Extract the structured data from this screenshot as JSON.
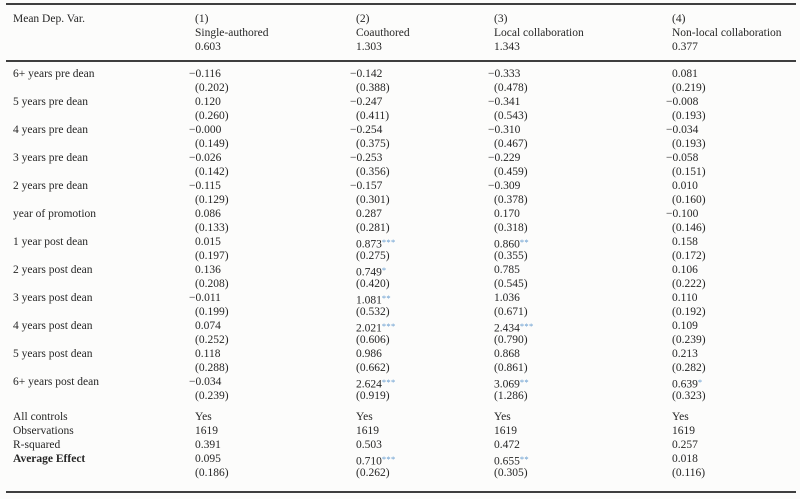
{
  "table": {
    "corner_label": "Mean Dep. Var.",
    "columns": [
      {
        "number": "(1)",
        "name": "Single-authored",
        "mean": "0.603"
      },
      {
        "number": "(2)",
        "name": "Coauthored",
        "mean": "1.303"
      },
      {
        "number": "(3)",
        "name": "Local collaboration",
        "mean": "1.343"
      },
      {
        "number": "(4)",
        "name": "Non-local collaboration",
        "mean": "0.377"
      }
    ],
    "coef_rows": [
      {
        "label": "6+ years pre dean",
        "cells": [
          {
            "est": "−0.116",
            "stars": "",
            "se": "(0.202)"
          },
          {
            "est": "−0.142",
            "stars": "",
            "se": "(0.388)"
          },
          {
            "est": "−0.333",
            "stars": "",
            "se": "(0.478)"
          },
          {
            "est": "0.081",
            "stars": "",
            "se": "(0.219)"
          }
        ]
      },
      {
        "label": "5 years pre dean",
        "cells": [
          {
            "est": "0.120",
            "stars": "",
            "se": "(0.260)"
          },
          {
            "est": "−0.247",
            "stars": "",
            "se": "(0.411)"
          },
          {
            "est": "−0.341",
            "stars": "",
            "se": "(0.543)"
          },
          {
            "est": "−0.008",
            "stars": "",
            "se": "(0.193)"
          }
        ]
      },
      {
        "label": "4 years pre dean",
        "cells": [
          {
            "est": "−0.000",
            "stars": "",
            "se": "(0.149)"
          },
          {
            "est": "−0.254",
            "stars": "",
            "se": "(0.375)"
          },
          {
            "est": "−0.310",
            "stars": "",
            "se": "(0.467)"
          },
          {
            "est": "−0.034",
            "stars": "",
            "se": "(0.193)"
          }
        ]
      },
      {
        "label": "3 years pre dean",
        "cells": [
          {
            "est": "−0.026",
            "stars": "",
            "se": "(0.142)"
          },
          {
            "est": "−0.253",
            "stars": "",
            "se": "(0.356)"
          },
          {
            "est": "−0.229",
            "stars": "",
            "se": "(0.459)"
          },
          {
            "est": "−0.058",
            "stars": "",
            "se": "(0.151)"
          }
        ]
      },
      {
        "label": "2 years pre dean",
        "cells": [
          {
            "est": "−0.115",
            "stars": "",
            "se": "(0.129)"
          },
          {
            "est": "−0.157",
            "stars": "",
            "se": "(0.301)"
          },
          {
            "est": "−0.309",
            "stars": "",
            "se": "(0.378)"
          },
          {
            "est": "0.010",
            "stars": "",
            "se": "(0.160)"
          }
        ]
      },
      {
        "label": "year of promotion",
        "cells": [
          {
            "est": "0.086",
            "stars": "",
            "se": "(0.133)"
          },
          {
            "est": "0.287",
            "stars": "",
            "se": "(0.281)"
          },
          {
            "est": "0.170",
            "stars": "",
            "se": "(0.318)"
          },
          {
            "est": "−0.100",
            "stars": "",
            "se": "(0.146)"
          }
        ]
      },
      {
        "label": "1 year post dean",
        "cells": [
          {
            "est": "0.015",
            "stars": "",
            "se": "(0.197)"
          },
          {
            "est": "0.873",
            "stars": "***",
            "se": "(0.275)"
          },
          {
            "est": "0.860",
            "stars": "**",
            "se": "(0.355)"
          },
          {
            "est": "0.158",
            "stars": "",
            "se": "(0.172)"
          }
        ]
      },
      {
        "label": "2 years post dean",
        "cells": [
          {
            "est": "0.136",
            "stars": "",
            "se": "(0.208)"
          },
          {
            "est": "0.749",
            "stars": "*",
            "se": "(0.420)"
          },
          {
            "est": "0.785",
            "stars": "",
            "se": "(0.545)"
          },
          {
            "est": "0.106",
            "stars": "",
            "se": "(0.222)"
          }
        ]
      },
      {
        "label": "3 years post dean",
        "cells": [
          {
            "est": "−0.011",
            "stars": "",
            "se": "(0.199)"
          },
          {
            "est": "1.081",
            "stars": "**",
            "se": "(0.532)"
          },
          {
            "est": "1.036",
            "stars": "",
            "se": "(0.671)"
          },
          {
            "est": "0.110",
            "stars": "",
            "se": "(0.192)"
          }
        ]
      },
      {
        "label": "4 years post dean",
        "cells": [
          {
            "est": "0.074",
            "stars": "",
            "se": "(0.252)"
          },
          {
            "est": "2.021",
            "stars": "***",
            "se": "(0.606)"
          },
          {
            "est": "2.434",
            "stars": "***",
            "se": "(0.790)"
          },
          {
            "est": "0.109",
            "stars": "",
            "se": "(0.239)"
          }
        ]
      },
      {
        "label": "5 years post dean",
        "cells": [
          {
            "est": "0.118",
            "stars": "",
            "se": "(0.288)"
          },
          {
            "est": "0.986",
            "stars": "",
            "se": "(0.662)"
          },
          {
            "est": "0.868",
            "stars": "",
            "se": "(0.861)"
          },
          {
            "est": "0.213",
            "stars": "",
            "se": "(0.282)"
          }
        ]
      },
      {
        "label": "6+ years post dean",
        "cells": [
          {
            "est": "−0.034",
            "stars": "",
            "se": "(0.239)"
          },
          {
            "est": "2.624",
            "stars": "***",
            "se": "(0.919)"
          },
          {
            "est": "3.069",
            "stars": "**",
            "se": "(1.286)"
          },
          {
            "est": "0.639",
            "stars": "*",
            "se": "(0.323)"
          }
        ]
      }
    ],
    "stat_rows": [
      {
        "label": "All controls",
        "values": [
          "Yes",
          "Yes",
          "Yes",
          "Yes"
        ]
      },
      {
        "label": "Observations",
        "values": [
          "1619",
          "1619",
          "1619",
          "1619"
        ]
      },
      {
        "label": "R-squared",
        "values": [
          "0.391",
          "0.503",
          "0.472",
          "0.257"
        ]
      }
    ],
    "avg_row": {
      "label": "Average Effect",
      "cells": [
        {
          "est": "0.095",
          "stars": "",
          "se": "(0.186)"
        },
        {
          "est": "0.710",
          "stars": "***",
          "se": "(0.262)"
        },
        {
          "est": "0.655",
          "stars": "**",
          "se": "(0.305)"
        },
        {
          "est": "0.018",
          "stars": "",
          "se": "(0.116)"
        }
      ]
    }
  },
  "style": {
    "star_color": "#5e97cd",
    "rule_color": "#3f3f3f"
  }
}
